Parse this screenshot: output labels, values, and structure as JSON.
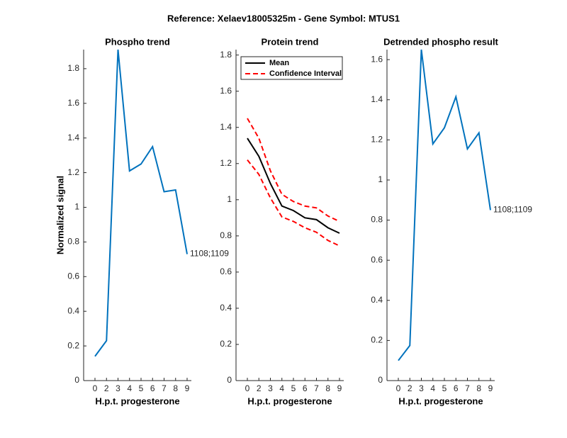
{
  "title": "Reference:  Xelaev18005325m - Gene Symbol:  MTUS1",
  "chart_data": [
    {
      "type": "line",
      "title": "Phospho trend",
      "xlabel": "H.p.t. progesterone",
      "ylabel": "Normalized signal",
      "categories": [
        "0",
        "2",
        "3",
        "4",
        "5",
        "6",
        "7",
        "8",
        "9"
      ],
      "series": [
        {
          "color": "#0072bd",
          "values": [
            0.14,
            0.23,
            1.91,
            1.21,
            1.25,
            1.35,
            1.09,
            1.1,
            0.73
          ]
        }
      ],
      "annotation": "1108;1109",
      "ylim": [
        0,
        1.91
      ],
      "yticks": [
        0,
        0.2,
        0.4,
        0.6,
        0.8,
        1,
        1.2,
        1.4,
        1.6,
        1.8
      ]
    },
    {
      "type": "line",
      "title": "Protein trend",
      "xlabel": "H.p.t. progesterone",
      "categories": [
        "0",
        "2",
        "3",
        "4",
        "5",
        "6",
        "7",
        "8",
        "9"
      ],
      "series": [
        {
          "name": "Mean",
          "color": "#000000",
          "values": [
            1.34,
            1.24,
            1.09,
            0.965,
            0.94,
            0.9,
            0.89,
            0.845,
            0.815
          ]
        }
      ],
      "ci": {
        "name": "Confidence Interval",
        "color": "#ff0000",
        "upper": [
          1.45,
          1.34,
          1.16,
          1.03,
          0.99,
          0.965,
          0.955,
          0.91,
          0.88
        ],
        "lower": [
          1.22,
          1.14,
          1.01,
          0.905,
          0.88,
          0.845,
          0.82,
          0.775,
          0.745
        ]
      },
      "legend": "upper right",
      "ylim": [
        0,
        1.83
      ],
      "yticks": [
        0,
        0.2,
        0.4,
        0.6,
        0.8,
        1,
        1.2,
        1.4,
        1.6,
        1.8
      ]
    },
    {
      "type": "line",
      "title": "Detrended phospho result",
      "xlabel": "H.p.t. progesterone",
      "categories": [
        "0",
        "2",
        "3",
        "4",
        "5",
        "6",
        "7",
        "8",
        "9"
      ],
      "series": [
        {
          "color": "#0072bd",
          "values": [
            0.1,
            0.175,
            1.65,
            1.18,
            1.26,
            1.415,
            1.155,
            1.235,
            0.85
          ]
        }
      ],
      "annotation": "1108;1109",
      "ylim": [
        0,
        1.65
      ],
      "yticks": [
        0,
        0.2,
        0.4,
        0.6,
        0.8,
        1,
        1.2,
        1.4,
        1.6
      ]
    }
  ]
}
